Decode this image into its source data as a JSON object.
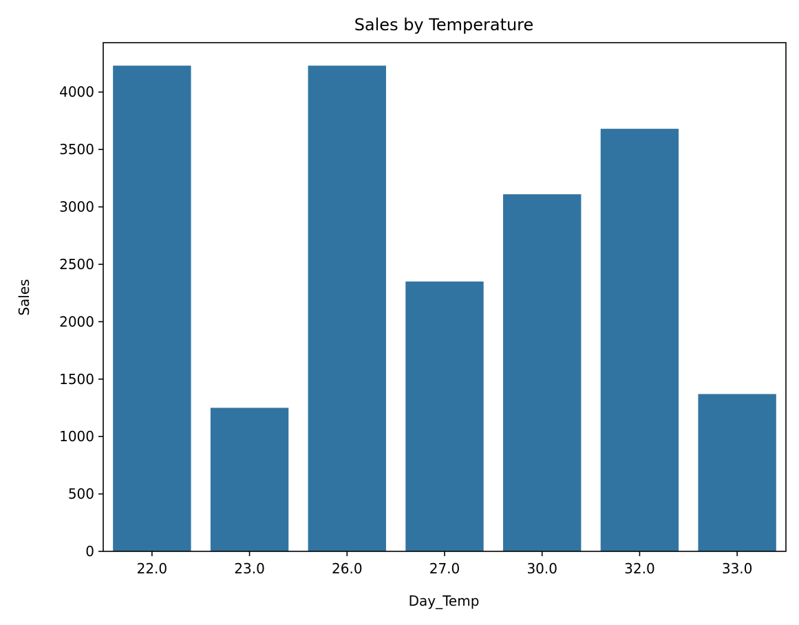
{
  "chart_data": {
    "type": "bar",
    "title": "Sales by Temperature",
    "xlabel": "Day_Temp",
    "ylabel": "Sales",
    "categories": [
      "22.0",
      "23.0",
      "26.0",
      "27.0",
      "30.0",
      "32.0",
      "33.0"
    ],
    "values": [
      4230,
      1250,
      4230,
      2350,
      3110,
      3680,
      1370
    ],
    "ylim": [
      0,
      4430
    ],
    "yticks": [
      0,
      500,
      1000,
      1500,
      2000,
      2500,
      3000,
      3500,
      4000
    ],
    "grid": false,
    "legend": "none",
    "bar_color": "#3274a1"
  }
}
